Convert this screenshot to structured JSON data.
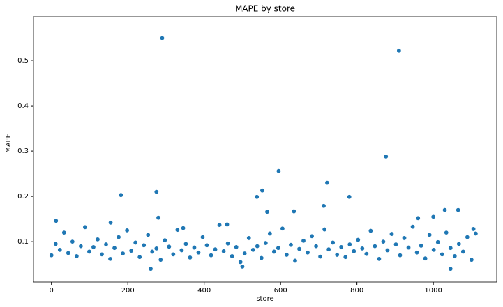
{
  "chart_data": {
    "type": "scatter",
    "title": "MAPE by store",
    "x_label": "store",
    "y_label": "MAPE",
    "color": "#1f77b4",
    "xlim": [
      -47,
      1166
    ],
    "ylim": [
      0.011,
      0.597
    ],
    "xticks": [
      0,
      200,
      400,
      600,
      800,
      1000
    ],
    "yticks": [
      0.1,
      0.2,
      0.3,
      0.4,
      0.5
    ],
    "x": [
      0,
      11,
      22,
      33,
      44,
      55,
      66,
      77,
      88,
      99,
      110,
      121,
      132,
      143,
      154,
      165,
      176,
      187,
      198,
      209,
      220,
      231,
      242,
      253,
      264,
      275,
      286,
      297,
      308,
      319,
      330,
      341,
      352,
      363,
      374,
      385,
      396,
      407,
      418,
      429,
      440,
      451,
      462,
      473,
      484,
      495,
      506,
      517,
      528,
      539,
      550,
      561,
      572,
      583,
      594,
      605,
      616,
      627,
      638,
      649,
      660,
      671,
      682,
      693,
      704,
      715,
      726,
      737,
      748,
      759,
      770,
      781,
      792,
      803,
      814,
      825,
      836,
      847,
      858,
      869,
      880,
      891,
      902,
      913,
      924,
      935,
      946,
      957,
      968,
      979,
      990,
      1001,
      1012,
      1023,
      1034,
      1045,
      1056,
      1067,
      1078,
      1089,
      1100,
      1111,
      290,
      910,
      876,
      595,
      722,
      275,
      182,
      552,
      538,
      780,
      713,
      12,
      280,
      1000,
      1030,
      1065,
      565,
      635,
      260,
      1045,
      500,
      155,
      345,
      460,
      960,
      1105
    ],
    "values": [
      0.07,
      0.095,
      0.082,
      0.12,
      0.075,
      0.1,
      0.068,
      0.09,
      0.132,
      0.078,
      0.088,
      0.105,
      0.072,
      0.094,
      0.062,
      0.086,
      0.11,
      0.074,
      0.125,
      0.08,
      0.098,
      0.066,
      0.092,
      0.115,
      0.078,
      0.085,
      0.06,
      0.103,
      0.089,
      0.072,
      0.126,
      0.081,
      0.095,
      0.065,
      0.087,
      0.076,
      0.11,
      0.092,
      0.07,
      0.083,
      0.137,
      0.079,
      0.096,
      0.068,
      0.088,
      0.055,
      0.074,
      0.108,
      0.082,
      0.09,
      0.064,
      0.097,
      0.118,
      0.078,
      0.086,
      0.129,
      0.071,
      0.093,
      0.058,
      0.084,
      0.102,
      0.076,
      0.112,
      0.09,
      0.067,
      0.127,
      0.083,
      0.098,
      0.071,
      0.088,
      0.066,
      0.094,
      0.079,
      0.104,
      0.085,
      0.073,
      0.124,
      0.09,
      0.062,
      0.1,
      0.081,
      0.117,
      0.094,
      0.07,
      0.108,
      0.087,
      0.133,
      0.076,
      0.091,
      0.063,
      0.115,
      0.082,
      0.099,
      0.072,
      0.12,
      0.086,
      0.068,
      0.095,
      0.078,
      0.11,
      0.06,
      0.118,
      0.55,
      0.522,
      0.288,
      0.256,
      0.23,
      0.21,
      0.203,
      0.213,
      0.199,
      0.199,
      0.179,
      0.146,
      0.153,
      0.155,
      0.17,
      0.17,
      0.166,
      0.167,
      0.04,
      0.04,
      0.045,
      0.142,
      0.13,
      0.138,
      0.152,
      0.128
    ]
  }
}
